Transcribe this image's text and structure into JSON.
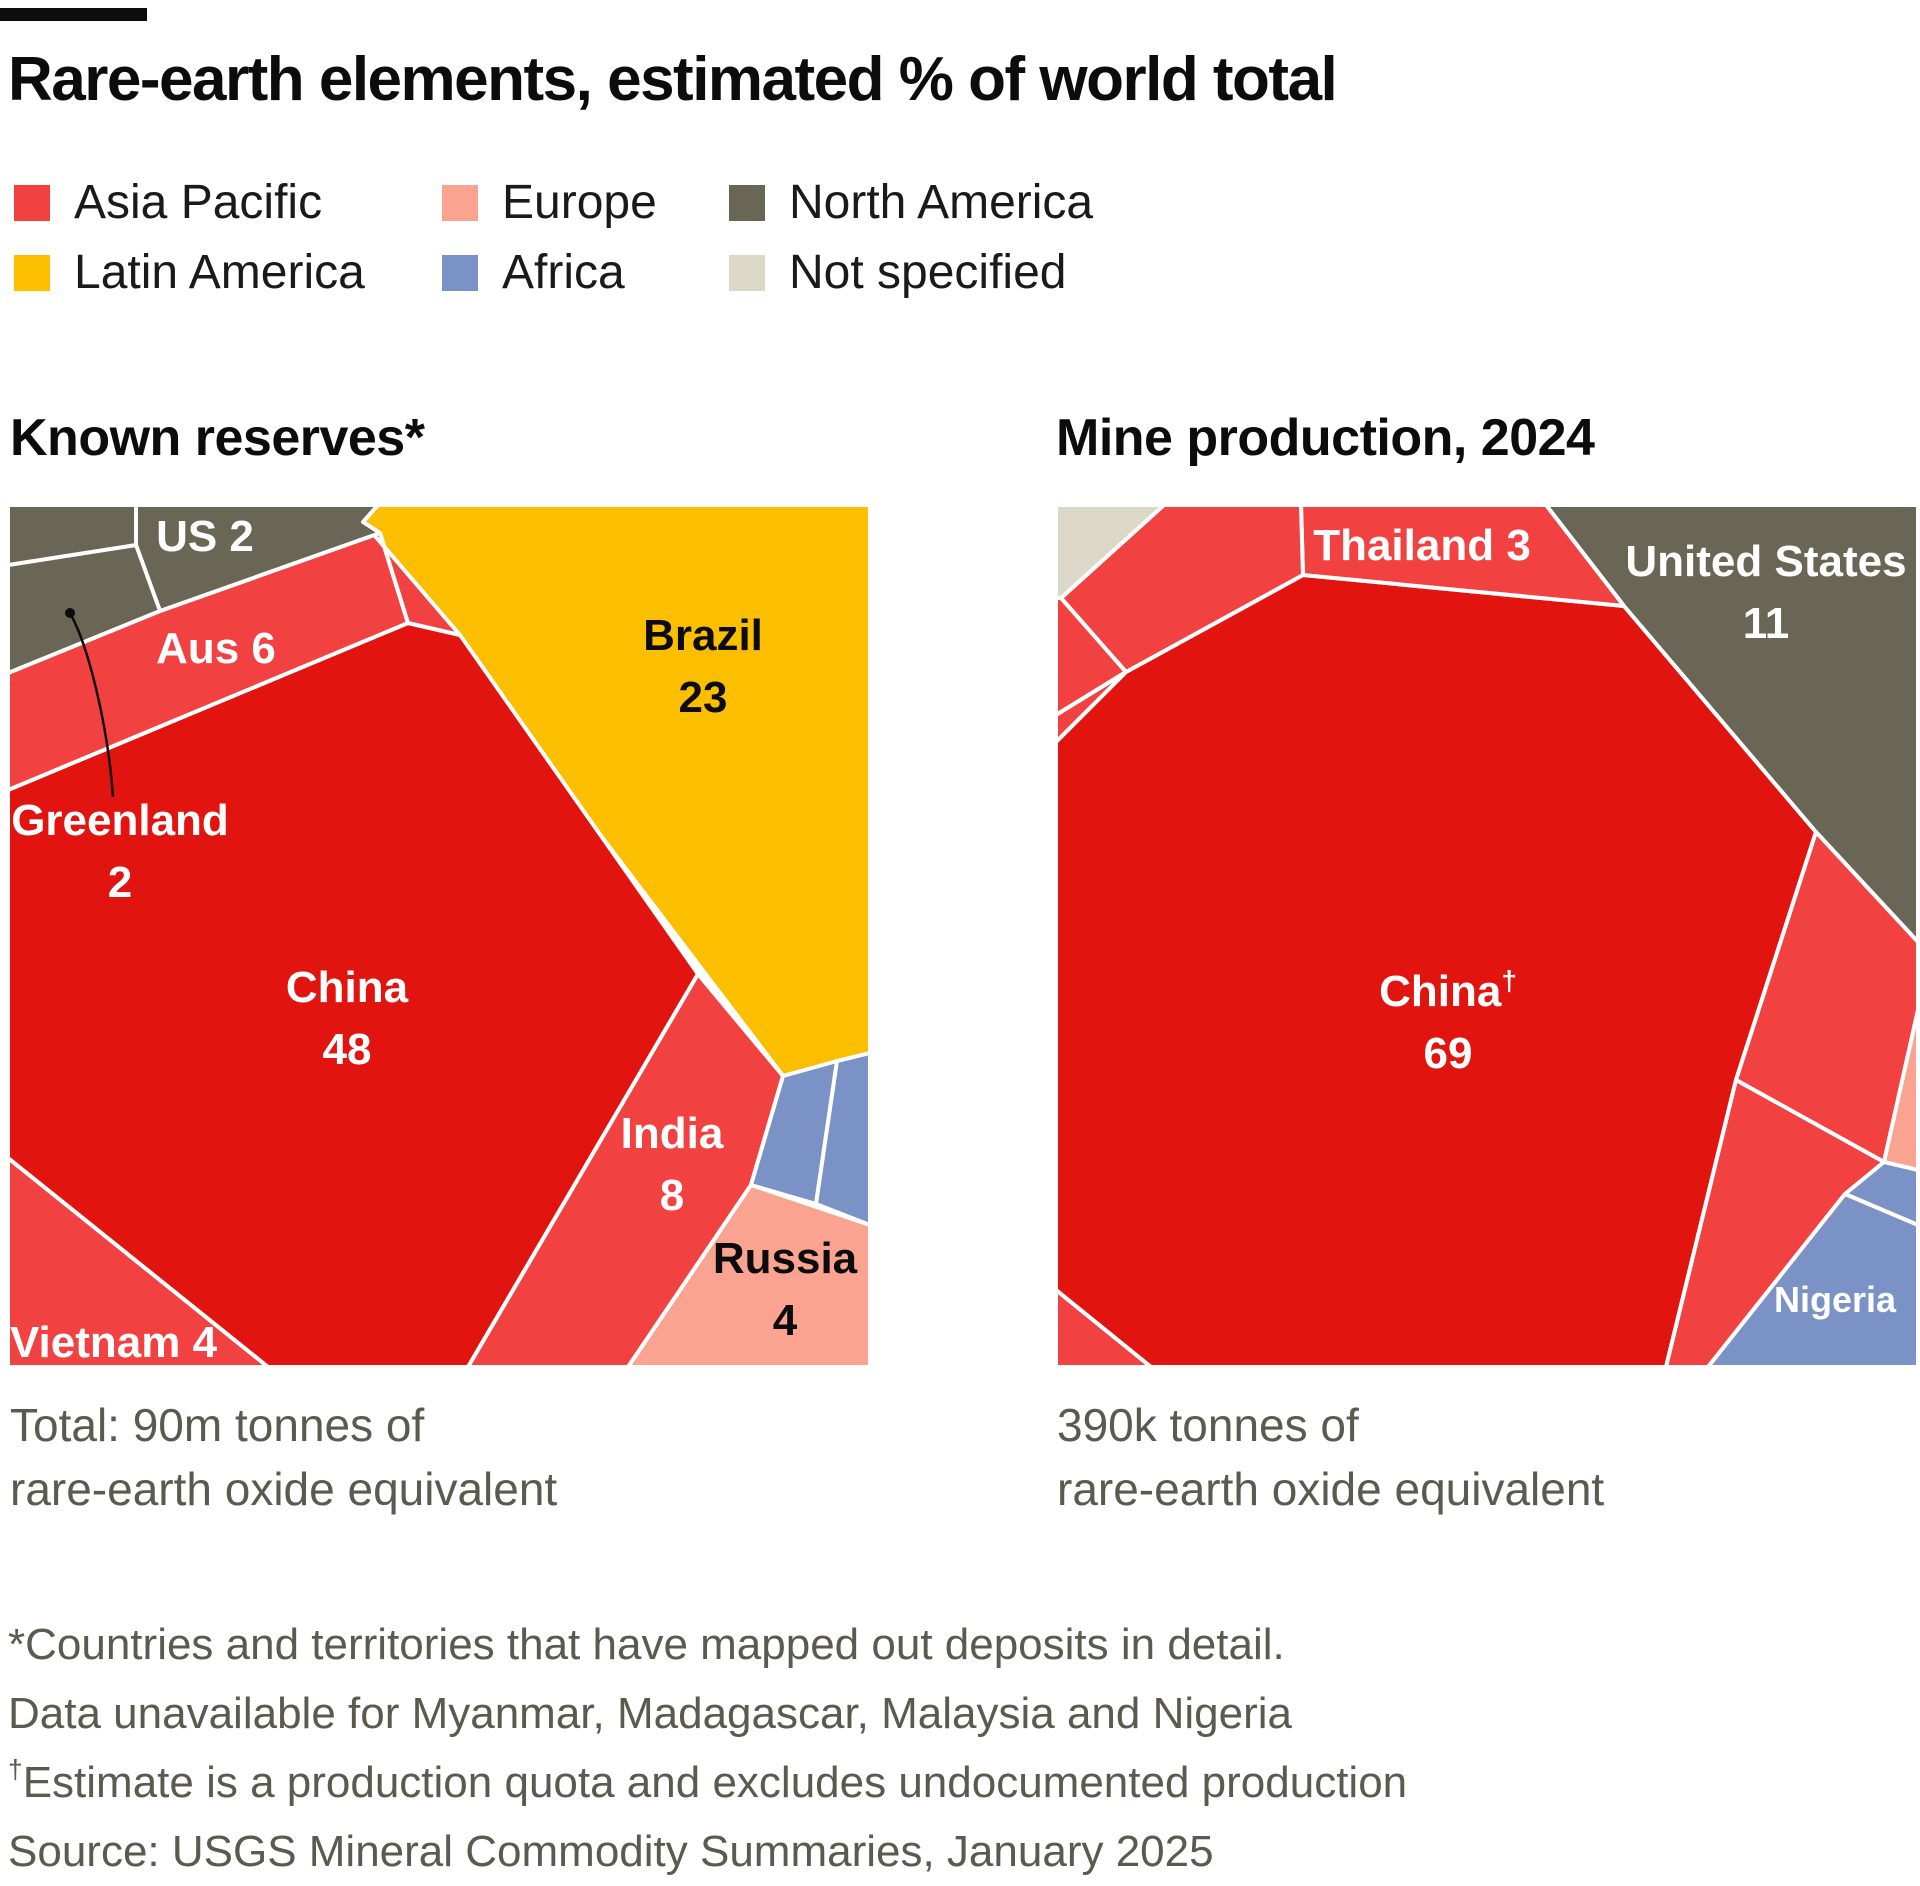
{
  "title": "Rare-earth elements, estimated % of world total",
  "legend": [
    {
      "label": "Asia Pacific",
      "color": "#f24141"
    },
    {
      "label": "Europe",
      "color": "#f9a390"
    },
    {
      "label": "North America",
      "color": "#6a6655"
    },
    {
      "label": "Latin America",
      "color": "#fbbf00"
    },
    {
      "label": "Africa",
      "color": "#7b92c6"
    },
    {
      "label": "Not specified",
      "color": "#dcd8c8"
    }
  ],
  "colors": {
    "china": "#e2140f",
    "asia_pacific": "#f24141",
    "europe": "#f9a390",
    "north_america": "#6a6655",
    "latin_america": "#fbbf00",
    "africa": "#7b92c6",
    "not_specified": "#dcd8c8"
  },
  "chart_data": [
    {
      "type": "voronoi-treemap",
      "title": "Known reserves*",
      "unit": "% of world total",
      "labels": {
        "china_name": "China",
        "china_value": "48",
        "brazil_name": "Brazil",
        "brazil_value": "23",
        "india_name": "India",
        "india_value": "8",
        "russia_name": "Russia",
        "russia_value": "4",
        "vietnam": "Vietnam 4",
        "aus": "Aus 6",
        "us": "US 2",
        "greenland_name": "Greenland",
        "greenland_value": "2"
      },
      "cells": [
        {
          "name": "China",
          "value": 48,
          "region": "Asia Pacific"
        },
        {
          "name": "Brazil",
          "value": 23,
          "region": "Latin America"
        },
        {
          "name": "India",
          "value": 8,
          "region": "Asia Pacific"
        },
        {
          "name": "Aus",
          "value": 6,
          "region": "Asia Pacific"
        },
        {
          "name": "Vietnam",
          "value": 4,
          "region": "Asia Pacific"
        },
        {
          "name": "Russia",
          "value": 4,
          "region": "Europe"
        },
        {
          "name": "US",
          "value": 2,
          "region": "North America"
        },
        {
          "name": "Greenland",
          "value": 2,
          "region": "North America"
        }
      ],
      "total_lines": [
        "Total: 90m tonnes of",
        "rare-earth oxide equivalent"
      ]
    },
    {
      "type": "voronoi-treemap",
      "title": "Mine production, 2024",
      "unit": "% of world total",
      "labels": {
        "china_name": "China",
        "china_mark": "†",
        "china_value": "69",
        "thailand": "Thailand 3",
        "us_name": "United States",
        "us_value": "11",
        "nigeria": "Nigeria"
      },
      "cells": [
        {
          "name": "China",
          "value": 69,
          "region": "Asia Pacific"
        },
        {
          "name": "United States",
          "value": 11,
          "region": "North America"
        },
        {
          "name": "Thailand",
          "value": 3,
          "region": "Asia Pacific"
        },
        {
          "name": "Nigeria",
          "region": "Africa"
        }
      ],
      "total_lines": [
        "390k tonnes of",
        "rare-earth oxide equivalent"
      ]
    }
  ],
  "notes": {
    "line1": "*Countries and territories that have mapped out deposits in detail.",
    "line2": "Data unavailable for Myanmar, Madagascar, Malaysia and Nigeria",
    "line3_mark": "†",
    "line3": "Estimate is a production quota and excludes undocumented production",
    "source": "Source: USGS Mineral Commodity Summaries, January 2025"
  }
}
